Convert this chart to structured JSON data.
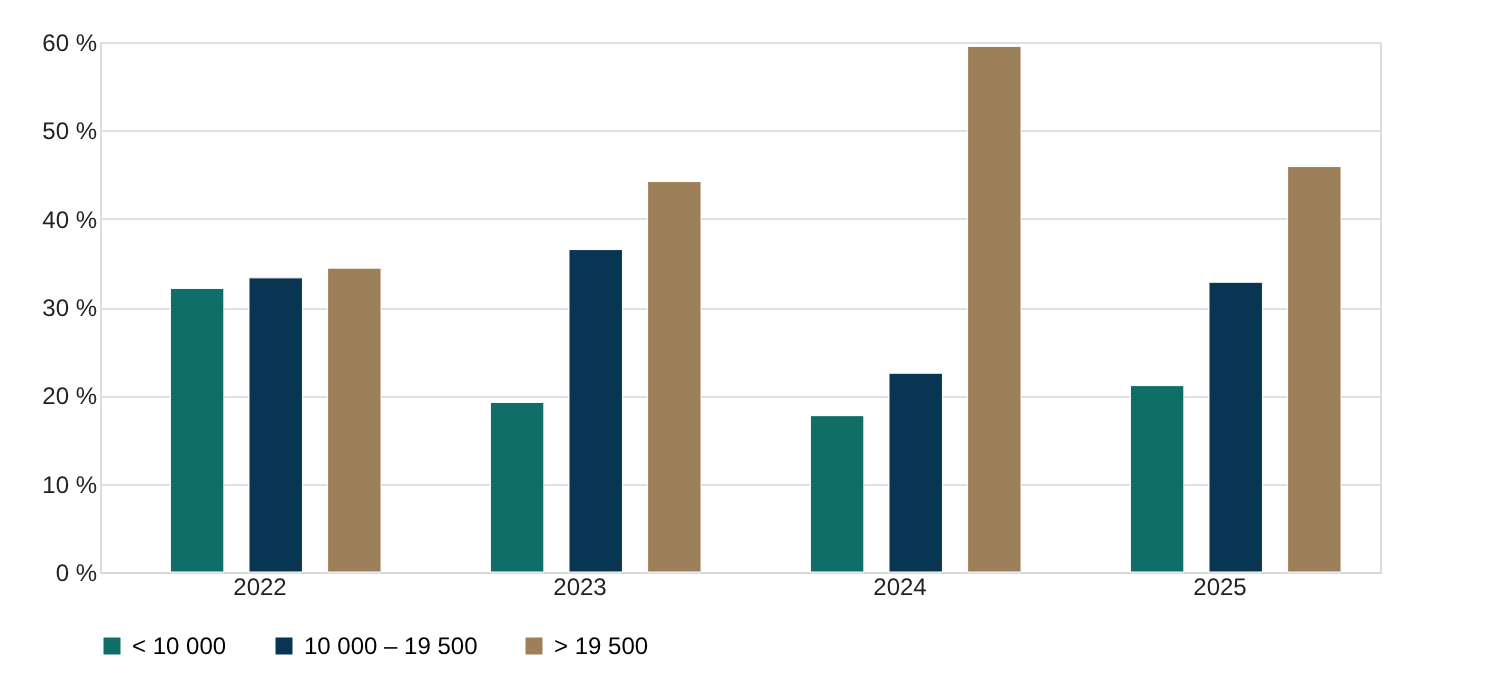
{
  "chart_data": {
    "type": "bar",
    "categories": [
      "2022",
      "2023",
      "2024",
      "2025"
    ],
    "series": [
      {
        "name": "< 10 000",
        "color": "#0f6f68",
        "values": [
          32.1,
          19.2,
          17.7,
          21.1
        ]
      },
      {
        "name": "10 000 – 19 500",
        "color": "#083652",
        "values": [
          33.3,
          36.5,
          22.5,
          32.8
        ]
      },
      {
        "name": "> 19 500",
        "color": "#9d8059",
        "values": [
          34.4,
          44.2,
          59.5,
          45.9
        ]
      }
    ],
    "ylim": [
      0,
      60
    ],
    "yticks": [
      {
        "value": 0,
        "label": "0 %"
      },
      {
        "value": 10,
        "label": "10 %"
      },
      {
        "value": 20,
        "label": "20 %"
      },
      {
        "value": 30,
        "label": "30 %"
      },
      {
        "value": 40,
        "label": "40 %"
      },
      {
        "value": 50,
        "label": "50 %"
      },
      {
        "value": 60,
        "label": "60 %"
      }
    ],
    "grid": "y",
    "legend": "bottom"
  }
}
